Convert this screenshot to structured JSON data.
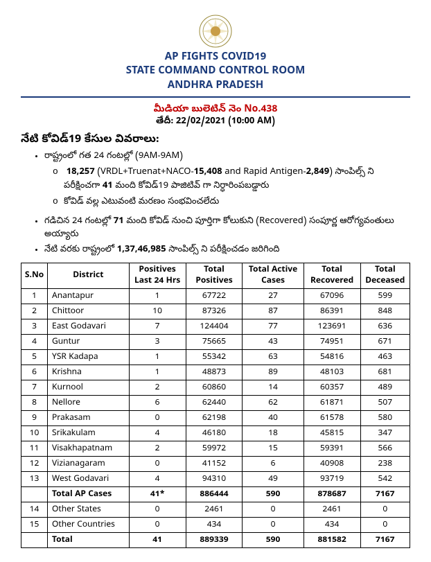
{
  "header": {
    "line1": "AP FIGHTS COVID19",
    "line2": "STATE COMMAND CONTROL ROOM",
    "line3": "ANDHRA PRADESH"
  },
  "bulletin": {
    "no_line": "మీడియా బులెటిన్ నెం No.438",
    "date_label": "తేదీ:",
    "date_value": "22/02/2021 (10:00 AM)"
  },
  "section_title": "నేటి కోవిడ్19 కేసుల వివరాలు:",
  "bullets": {
    "b1": "రాష్ట్రంలో గత 24 గంటల్లో (9AM-9AM)",
    "b1a_num": "18,257",
    "b1a_rest": " (VRDL+Truenat+NACO-",
    "b1a_num2": "15,408",
    "b1a_mid": " and Rapid Antigen-",
    "b1a_num3": "2,849",
    "b1a_tail_a": ") సాంపిల్స్ ని పరీక్షించగా ",
    "b1a_tail_num": "41",
    "b1a_tail_b": " మంది కోవిడ్19 పాజిటివ్ గా నిర్ధారింపబడ్డారు",
    "b1b": "కోవిడ్ వల్ల ఎటువంటి మరణం సంభవించలేదు",
    "b2_a": "గడిచిన 24 గంటల్లో ",
    "b2_num": "71",
    "b2_b": " మంది కోవిడ్ నుంచి పూర్తిగా కోలుకుని (Recovered) సంపూర్ణ ఆరోగ్యవంతులు అయ్యారు",
    "b3_a": "నేటి వరకు రాష్ట్రంలో ",
    "b3_num": "1,37,46,985",
    "b3_b": "  సాంపిల్స్ ని పరీక్షించడం జరిగింది"
  },
  "table": {
    "columns": [
      "S.No",
      "District",
      "Positives Last 24 Hrs",
      "Total Positives",
      "Total Active Cases",
      "Total Recovered",
      "Total Deceased"
    ],
    "rows": [
      [
        "1",
        "Anantapur",
        "1",
        "67722",
        "27",
        "67096",
        "599"
      ],
      [
        "2",
        "Chittoor",
        "10",
        "87326",
        "87",
        "86391",
        "848"
      ],
      [
        "3",
        "East Godavari",
        "7",
        "124404",
        "77",
        "123691",
        "636"
      ],
      [
        "4",
        "Guntur",
        "3",
        "75665",
        "43",
        "74951",
        "671"
      ],
      [
        "5",
        "YSR Kadapa",
        "1",
        "55342",
        "63",
        "54816",
        "463"
      ],
      [
        "6",
        "Krishna",
        "1",
        "48873",
        "89",
        "48103",
        "681"
      ],
      [
        "7",
        "Kurnool",
        "2",
        "60860",
        "14",
        "60357",
        "489"
      ],
      [
        "8",
        "Nellore",
        "6",
        "62440",
        "62",
        "61871",
        "507"
      ],
      [
        "9",
        "Prakasam",
        "0",
        "62198",
        "40",
        "61578",
        "580"
      ],
      [
        "10",
        "Srikakulam",
        "4",
        "46180",
        "18",
        "45815",
        "347"
      ],
      [
        "11",
        "Visakhapatnam",
        "2",
        "59972",
        "15",
        "59391",
        "566"
      ],
      [
        "12",
        "Vizianagaram",
        "0",
        "41152",
        "6",
        "40908",
        "238"
      ],
      [
        "13",
        "West Godavari",
        "4",
        "94310",
        "49",
        "93719",
        "542"
      ]
    ],
    "subtotal": [
      "",
      "Total AP Cases",
      "41*",
      "886444",
      "590",
      "878687",
      "7167"
    ],
    "extra": [
      [
        "14",
        "Other States",
        "0",
        "2461",
        "0",
        "2461",
        "0"
      ],
      [
        "15",
        "Other Countries",
        "0",
        "434",
        "0",
        "434",
        "0"
      ]
    ],
    "grand": [
      "",
      "Total",
      "41",
      "889339",
      "590",
      "881582",
      "7167"
    ]
  },
  "colors": {
    "header_blue": "#1a3a7a",
    "bulletin_red": "#c00000"
  }
}
